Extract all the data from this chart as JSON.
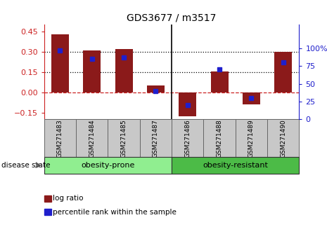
{
  "title": "GDS3677 / m3517",
  "samples": [
    "GSM271483",
    "GSM271484",
    "GSM271485",
    "GSM271487",
    "GSM271486",
    "GSM271488",
    "GSM271489",
    "GSM271490"
  ],
  "log_ratio": [
    0.43,
    0.31,
    0.32,
    0.05,
    -0.18,
    0.155,
    -0.09,
    0.3
  ],
  "percentile_rank": [
    97,
    85,
    87,
    40,
    20,
    70,
    30,
    80
  ],
  "group1_label": "obesity-prone",
  "group1_color": "#90EE90",
  "group1_count": 4,
  "group2_label": "obesity-resistant",
  "group2_color": "#4CBB47",
  "group2_count": 4,
  "bar_color": "#8B1A1A",
  "square_color": "#1F1FCC",
  "ylim_left": [
    -0.2,
    0.5
  ],
  "ylim_right": [
    0,
    133.33
  ],
  "yticks_left": [
    -0.15,
    0.0,
    0.15,
    0.3,
    0.45
  ],
  "yticks_right": [
    0,
    25,
    50,
    75,
    100
  ],
  "hlines": [
    0.15,
    0.3
  ],
  "zero_line_color": "#CC2222",
  "dotted_line_color": "black",
  "bg_color": "#ffffff",
  "label_bg_color": "#C8C8C8",
  "disease_state_label": "disease state",
  "legend_log_ratio": "log ratio",
  "legend_pct": "percentile rank within the sample"
}
